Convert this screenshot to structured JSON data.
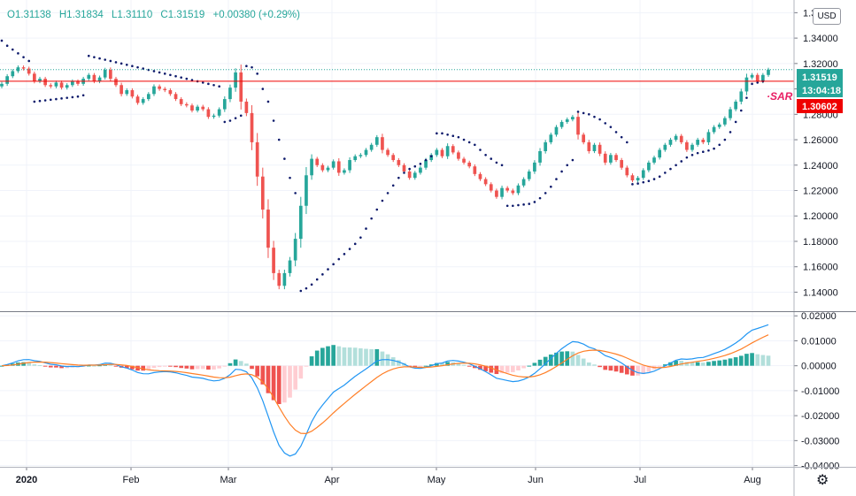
{
  "header": {
    "ohlc": [
      "O1.31138",
      "H1.31834",
      "L1.31110",
      "C1.31519",
      "+0.00380 (+0.29%)"
    ],
    "currency_button": "USD",
    "sar_label": "·SAR",
    "price_labels": {
      "last": "1.31519",
      "countdown": "13:04:18",
      "sar": "1.30602"
    }
  },
  "colors": {
    "up": "#26a69a",
    "down": "#ef5350",
    "sar_dots": "#0d1a6b",
    "macd_line": "#2196f3",
    "signal_line": "#ff7f27",
    "hist_up_strong": "#26a69a",
    "hist_up_weak": "#b2dfdb",
    "hist_down_strong": "#ef5350",
    "hist_down_weak": "#ffcdd2"
  },
  "chart_data": [
    {
      "type": "candlestick",
      "y_ticks": [
        "1.36000",
        "1.34000",
        "1.32000",
        "1.30000",
        "1.28000",
        "1.26000",
        "1.24000",
        "1.22000",
        "1.20000",
        "1.18000",
        "1.16000",
        "1.14000"
      ],
      "ylim": [
        1.125,
        1.37
      ],
      "x_labels": [
        "2020",
        "Feb",
        "Mar",
        "Apr",
        "May",
        "Jun",
        "Jul",
        "Aug"
      ],
      "close": [
        1.304,
        1.31,
        1.314,
        1.317,
        1.316,
        1.312,
        1.306,
        1.308,
        1.303,
        1.302,
        1.305,
        1.301,
        1.303,
        1.306,
        1.304,
        1.308,
        1.311,
        1.306,
        1.309,
        1.315,
        1.308,
        1.303,
        1.296,
        1.299,
        1.294,
        1.289,
        1.292,
        1.296,
        1.302,
        1.3,
        1.299,
        1.296,
        1.292,
        1.288,
        1.287,
        1.283,
        1.286,
        1.284,
        1.278,
        1.279,
        1.284,
        1.292,
        1.301,
        1.313,
        1.29,
        1.281,
        1.258,
        1.231,
        1.205,
        1.175,
        1.155,
        1.145,
        1.155,
        1.165,
        1.182,
        1.208,
        1.232,
        1.245,
        1.24,
        1.236,
        1.238,
        1.243,
        1.234,
        1.236,
        1.244,
        1.247,
        1.248,
        1.252,
        1.256,
        1.262,
        1.252,
        1.248,
        1.244,
        1.24,
        1.235,
        1.23,
        1.234,
        1.238,
        1.244,
        1.248,
        1.252,
        1.247,
        1.255,
        1.25,
        1.245,
        1.242,
        1.239,
        1.233,
        1.229,
        1.225,
        1.22,
        1.215,
        1.222,
        1.22,
        1.218,
        1.224,
        1.229,
        1.235,
        1.242,
        1.251,
        1.258,
        1.264,
        1.27,
        1.274,
        1.276,
        1.278,
        1.264,
        1.258,
        1.251,
        1.256,
        1.249,
        1.242,
        1.248,
        1.244,
        1.238,
        1.232,
        1.228,
        1.23,
        1.236,
        1.242,
        1.246,
        1.252,
        1.256,
        1.26,
        1.263,
        1.258,
        1.252,
        1.256,
        1.26,
        1.258,
        1.266,
        1.27,
        1.272,
        1.277,
        1.284,
        1.29,
        1.298,
        1.309,
        1.311,
        1.306,
        1.311,
        1.3152
      ],
      "sar": [
        1.338,
        1.334,
        1.331,
        1.328,
        1.325,
        1.322,
        1.29,
        1.2905,
        1.291,
        1.2915,
        1.292,
        1.2925,
        1.293,
        1.2935,
        1.294,
        1.295,
        1.326,
        1.325,
        1.324,
        1.323,
        1.322,
        1.321,
        1.32,
        1.319,
        1.318,
        1.317,
        1.316,
        1.315,
        1.314,
        1.313,
        1.312,
        1.311,
        1.31,
        1.309,
        1.308,
        1.307,
        1.306,
        1.305,
        1.304,
        1.303,
        1.302,
        1.274,
        1.275,
        1.277,
        1.279,
        1.318,
        1.317,
        1.312,
        1.3,
        1.29,
        1.275,
        1.26,
        1.245,
        1.23,
        1.218,
        1.141,
        1.143,
        1.146,
        1.15,
        1.154,
        1.158,
        1.162,
        1.166,
        1.17,
        1.174,
        1.178,
        1.183,
        1.19,
        1.198,
        1.205,
        1.212,
        1.218,
        1.224,
        1.23,
        1.234,
        1.237,
        1.239,
        1.241,
        1.244,
        1.247,
        1.265,
        1.265,
        1.264,
        1.263,
        1.262,
        1.26,
        1.258,
        1.256,
        1.252,
        1.248,
        1.245,
        1.242,
        1.24,
        1.208,
        1.208,
        1.2085,
        1.209,
        1.2095,
        1.211,
        1.214,
        1.218,
        1.223,
        1.229,
        1.235,
        1.24,
        1.244,
        1.282,
        1.281,
        1.28,
        1.278,
        1.276,
        1.273,
        1.27,
        1.266,
        1.262,
        1.258,
        1.225,
        1.2255,
        1.2265,
        1.2275,
        1.229,
        1.231,
        1.234,
        1.237,
        1.24,
        1.243,
        1.246,
        1.248,
        1.2495,
        1.2505,
        1.2515,
        1.253,
        1.256,
        1.26,
        1.266,
        1.274,
        1.283,
        1.293,
        1.304,
        1.305,
        1.306
      ],
      "last_price": 1.31519,
      "sar_current": 1.30602
    },
    {
      "type": "macd",
      "y_ticks": [
        "0.02000",
        "0.01000",
        "0.00000",
        "-0.01000",
        "-0.02000",
        "-0.03000",
        "-0.04000"
      ],
      "ylim": [
        -0.0405,
        0.0215
      ]
    }
  ]
}
